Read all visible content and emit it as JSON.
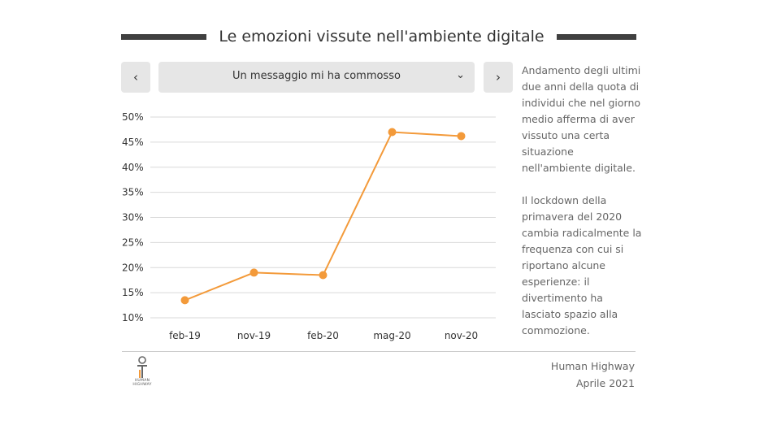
{
  "title": "Le emozioni vissute nell'ambiente digitale",
  "selector": {
    "prev_icon": "chevron-left-icon",
    "next_icon": "chevron-right-icon",
    "selected": "Un messaggio mi ha commosso",
    "caret_icon": "chevron-down-icon"
  },
  "side_text": {
    "paragraph_1": "Andamento degli ultimi due anni della quota di individui che nel giorno medio afferma di aver vissuto una certa situazione nell'ambiente digitale.",
    "paragraph_2": "Il lockdown della primavera del 2020 cambia radicalmente la frequenza con cui si riportano alcune esperienze: il divertimento ha lasciato spazio alla commozione."
  },
  "footer": {
    "source_line_1": "Human Highway",
    "source_line_2": "Aprile 2021",
    "logo_text_line_1": "HUMAN",
    "logo_text_line_2": "HIGHWAY"
  },
  "colors": {
    "line": "#f39a3a",
    "grid": "#d9d9d9",
    "accent_bar": "#404040"
  },
  "chart_data": {
    "type": "line",
    "categories": [
      "feb-19",
      "nov-19",
      "feb-20",
      "mag-20",
      "nov-20"
    ],
    "series": [
      {
        "values": [
          13.5,
          19.0,
          18.5,
          47.0,
          46.2
        ]
      }
    ],
    "yticks": [
      "10%",
      "15%",
      "20%",
      "25%",
      "30%",
      "35%",
      "40%",
      "45%",
      "50%"
    ],
    "ylim": [
      10,
      50
    ],
    "grid": true,
    "legend": "none"
  }
}
